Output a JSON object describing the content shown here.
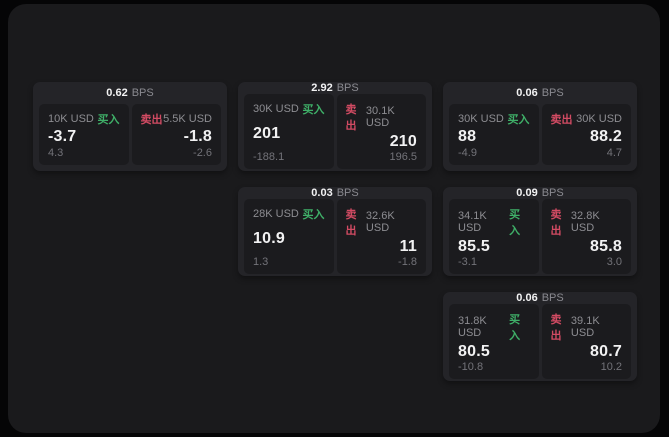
{
  "labels": {
    "bps_unit": "BPS",
    "buy": "买入",
    "sell": "卖出"
  },
  "colors": {
    "buy_green": "#3faf68",
    "sell_red": "#d24b63",
    "page_bg": "#050506",
    "container_bg": "#1a1a1c",
    "card_bg": "#242428",
    "panel_bg": "#1b1b1e",
    "value_text": "#f2f2f3",
    "muted_text": "#8d8d92"
  },
  "cards": [
    {
      "bps": "0.62",
      "buy": {
        "amount": "10K USD",
        "price": "-3.7",
        "sub": "4.3"
      },
      "sell": {
        "amount": "5.5K USD",
        "price": "-1.8",
        "sub": "-2.6"
      }
    },
    {
      "bps": "2.92",
      "buy": {
        "amount": "30K USD",
        "price": "201",
        "sub": "-188.1"
      },
      "sell": {
        "amount": "30.1K USD",
        "price": "210",
        "sub": "196.5"
      }
    },
    {
      "bps": "0.06",
      "buy": {
        "amount": "30K USD",
        "price": "88",
        "sub": "-4.9"
      },
      "sell": {
        "amount": "30K USD",
        "price": "88.2",
        "sub": "4.7"
      }
    },
    {
      "bps": "0.03",
      "buy": {
        "amount": "28K USD",
        "price": "10.9",
        "sub": "1.3"
      },
      "sell": {
        "amount": "32.6K USD",
        "price": "11",
        "sub": "-1.8"
      }
    },
    {
      "bps": "0.09",
      "buy": {
        "amount": "34.1K USD",
        "price": "85.5",
        "sub": "-3.1"
      },
      "sell": {
        "amount": "32.8K USD",
        "price": "85.8",
        "sub": "3.0"
      }
    },
    {
      "bps": "0.06",
      "buy": {
        "amount": "31.8K USD",
        "price": "80.5",
        "sub": "-10.8"
      },
      "sell": {
        "amount": "39.1K USD",
        "price": "80.7",
        "sub": "10.2"
      }
    }
  ]
}
